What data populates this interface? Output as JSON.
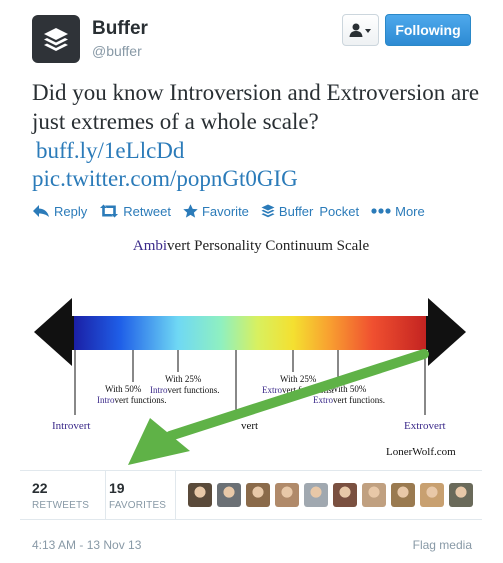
{
  "author": {
    "name": "Buffer",
    "handle": "@buffer",
    "avatar_icon": "buffer-logo-icon",
    "avatar_bg": "#2f3338"
  },
  "header": {
    "user_menu_icon": "user-dropdown-icon",
    "follow_label": "Following"
  },
  "tweet": {
    "text": "Did you know Introversion and Extroversion are just extremes of a whole scale?",
    "link_short": "buff.ly/1eLlcDd",
    "link_media": "pic.twitter.com/popnGt0GIG"
  },
  "actions": [
    {
      "label": "Reply",
      "icon": "reply-icon"
    },
    {
      "label": "Retweet",
      "icon": "retweet-icon"
    },
    {
      "label": "Favorite",
      "icon": "star-icon"
    },
    {
      "label": "Buffer",
      "icon": "buffer-icon"
    },
    {
      "label": "Pocket",
      "icon": ""
    },
    {
      "label": "More",
      "icon": "more-dots-icon"
    }
  ],
  "media": {
    "title_prefix": "Ambi",
    "title_rest": "vert Personality Continuum Scale",
    "labels": {
      "introvert": "Introvert",
      "extrovert": "Extrovert",
      "ambivert_partial": "vert",
      "with50_left_a": "With 50%",
      "with50_left_b_colored": "Intro",
      "with50_left_b_rest": "vert functions.",
      "with25_left_a": "With 25%",
      "with25_left_b_colored": "Intro",
      "with25_left_b_rest": "vert functions.",
      "with25_right_a": "With 25%",
      "with25_right_b_colored": "Extro",
      "with25_right_b_rest": "vert functions.",
      "with50_right_a": "With 50%",
      "with50_right_b_colored": "Extro",
      "with50_right_b_rest": "vert functions.",
      "credit": "LonerWolf.com"
    },
    "colors": {
      "title_accent": "#3b2a8a",
      "intro_accent": "#3b2a8a",
      "extro_accent": "#3b2a8a",
      "arrow_green": "#5fb247"
    }
  },
  "stats": {
    "retweets_count": "22",
    "retweets_label": "RETWEETS",
    "favorites_count": "19",
    "favorites_label": "FAVORITES"
  },
  "favoriters": [
    {
      "color": "#5a4a3a"
    },
    {
      "color": "#6b7075"
    },
    {
      "color": "#8a6a4a"
    },
    {
      "color": "#b08a6a"
    },
    {
      "color": "#a0a8b0"
    },
    {
      "color": "#7a5040"
    },
    {
      "color": "#c0a080"
    },
    {
      "color": "#9a7a50"
    },
    {
      "color": "#c8a070"
    },
    {
      "color": "#6a6a5a"
    }
  ],
  "footer": {
    "timestamp": "4:13 AM - 13 Nov 13",
    "flag_label": "Flag media"
  }
}
